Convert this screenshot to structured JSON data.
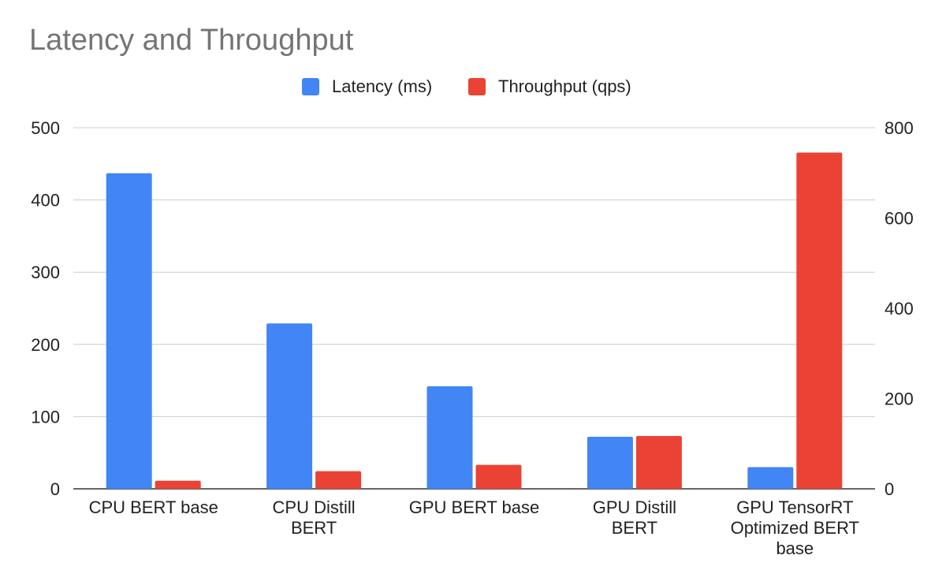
{
  "chart_data": {
    "type": "bar",
    "title": "Latency and Throughput",
    "categories": [
      [
        "CPU BERT base"
      ],
      [
        "CPU Distill",
        "BERT"
      ],
      [
        "GPU BERT base"
      ],
      [
        "GPU Distill",
        "BERT"
      ],
      [
        "GPU TensorRT",
        "Optimized BERT",
        "base"
      ]
    ],
    "series": [
      {
        "name": "Latency (ms)",
        "axis": "left",
        "color": "#4285f4",
        "values": [
          437,
          229,
          142,
          72,
          30
        ]
      },
      {
        "name": "Throughput (qps)",
        "axis": "right",
        "color": "#ea4335",
        "values": [
          18,
          39,
          53,
          117,
          745
        ]
      }
    ],
    "left_axis": {
      "ylim": [
        0,
        500
      ],
      "ticks": [
        "0",
        "100",
        "200",
        "300",
        "400",
        "500"
      ]
    },
    "right_axis": {
      "ylim": [
        0,
        800
      ],
      "ticks": [
        "0",
        "200",
        "400",
        "600",
        "800"
      ]
    },
    "grid": true,
    "legend": "top-center"
  }
}
